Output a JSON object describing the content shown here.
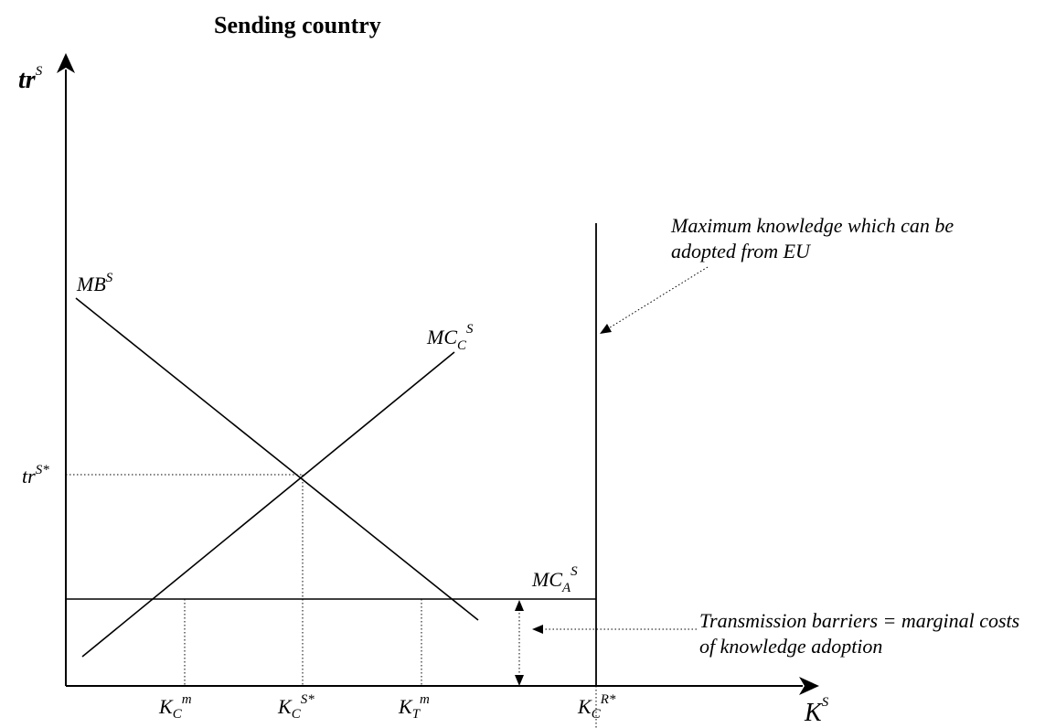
{
  "title": "Sending country",
  "axes": {
    "y_label": {
      "base": "tr",
      "sup": "S"
    },
    "x_label": {
      "base": "K",
      "sup": "S"
    }
  },
  "curves": {
    "mb": {
      "base": "MB",
      "sup": "S"
    },
    "mcc": {
      "base": "MC",
      "sub": "C",
      "sup": "S"
    },
    "mca": {
      "base": "MC",
      "sub": "A",
      "sup": "S"
    }
  },
  "y_tick": {
    "base": "tr",
    "sup": "S*"
  },
  "x_ticks": [
    {
      "base": "K",
      "sub": "C",
      "sup": "m"
    },
    {
      "base": "K",
      "sub": "C",
      "sup": "S*"
    },
    {
      "base": "K",
      "sub": "T",
      "sup": "m"
    },
    {
      "base": "K",
      "sub": "C",
      "sup": "R*"
    }
  ],
  "notes": {
    "max_knowledge": [
      "Maximum knowledge which can be",
      "adopted from EU"
    ],
    "barriers": [
      "Transmission barriers = marginal costs",
      "of knowledge adoption"
    ]
  }
}
